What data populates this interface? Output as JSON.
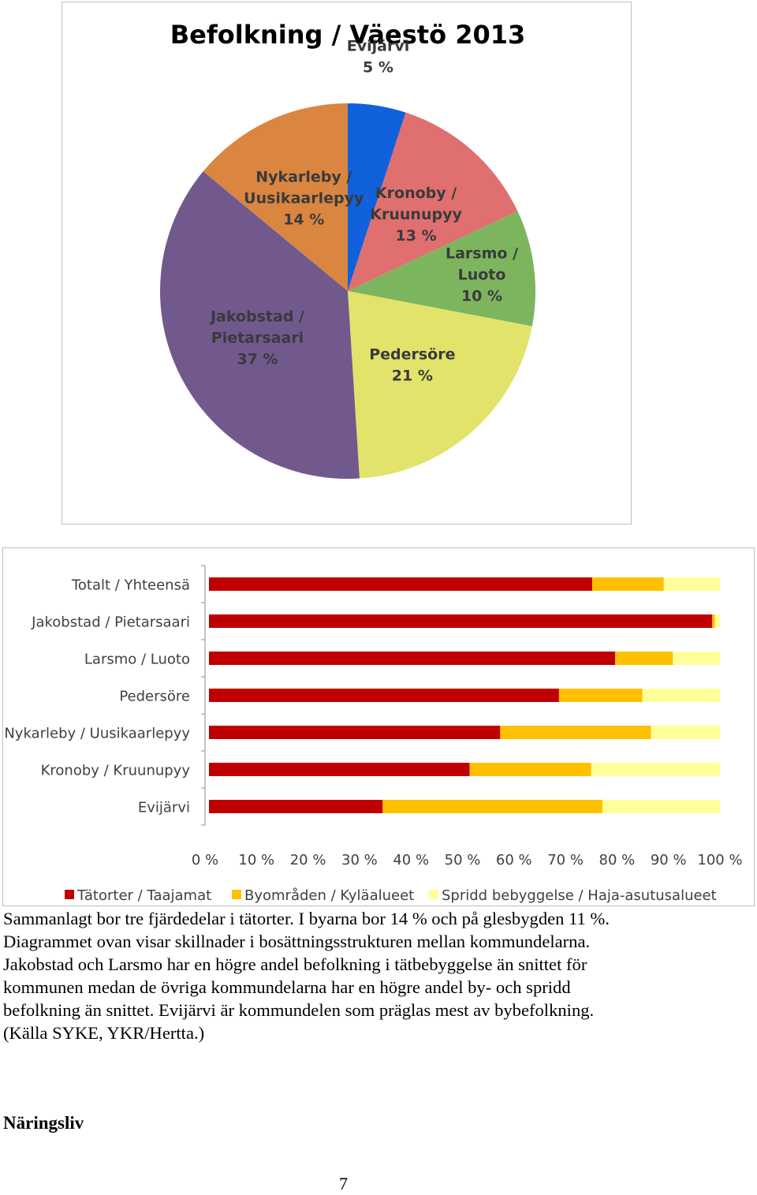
{
  "chart_data": [
    {
      "type": "pie",
      "title": "Befolkning / Väestö 2013",
      "slices": [
        {
          "label": [
            "Evijärvi"
          ],
          "value": 5,
          "value_label": "5 %",
          "color": "#1160DC"
        },
        {
          "label": [
            "Kronoby /",
            "Kruunupyy"
          ],
          "value": 13,
          "value_label": "13 %",
          "color": "#E06F6F"
        },
        {
          "label": [
            "Larsmo /",
            "Luoto"
          ],
          "value": 10,
          "value_label": "10 %",
          "color": "#7DB55E"
        },
        {
          "label": [
            "Pedersöre"
          ],
          "value": 21,
          "value_label": "21 %",
          "color": "#E2E36A"
        },
        {
          "label": [
            "Jakobstad /",
            "Pietarsaari"
          ],
          "value": 37,
          "value_label": "37 %",
          "color": "#71598E"
        },
        {
          "label": [
            "Nykarleby /",
            "Uusikaarlepyy"
          ],
          "value": 14,
          "value_label": "14 %",
          "color": "#DA8640"
        }
      ],
      "label_color": "#3a3a3a",
      "start_angle": "12 o'clock, clockwise"
    },
    {
      "type": "bar",
      "stacked": "percent",
      "orientation": "horizontal",
      "categories": [
        "Totalt / Yhteensä",
        "Jakobstad / Pietarsaari",
        "Larsmo / Luoto",
        "Pedersöre",
        "Nykarleby / Uusikaarlepyy",
        "Kronoby / Kruunupyy",
        "Evijärvi"
      ],
      "series": [
        {
          "name": "Tätorter / Taajamat",
          "color": "#C00000",
          "values": [
            75,
            98.5,
            79.5,
            68.5,
            57,
            51,
            34
          ]
        },
        {
          "name": "Byområden / Kyläalueet",
          "color": "#FFC000",
          "values": [
            14,
            0.5,
            11.3,
            16.3,
            29.5,
            23.8,
            43
          ]
        },
        {
          "name": "Spridd bebyggelse / Haja-asutusalueet",
          "color": "#FFFF99",
          "values": [
            11,
            1,
            9.2,
            15.2,
            13.5,
            25.2,
            23
          ]
        }
      ],
      "xticks": [
        "0 %",
        "10 %",
        "20 %",
        "30 %",
        "40 %",
        "50 %",
        "60 %",
        "70 %",
        "80 %",
        "90 %",
        "100 %"
      ],
      "xlim": [
        0,
        100
      ],
      "legend_position": "bottom",
      "grid": false
    }
  ],
  "caption": [
    "Sammanlagt bor tre fjärdedelar i tätorter. I byarna bor 14 % och på glesbygden 11 %.",
    "Diagrammet ovan visar skillnader i bosättningsstrukturen mellan kommundelarna.",
    "Jakobstad och Larsmo har en högre andel befolkning i tätbebyggelse än snittet för",
    "kommunen medan de övriga kommundelarna har en högre andel by- och spridd",
    "befolkning än snittet. Evijärvi är kommundelen som präglas mest av bybefolkning.",
    "(Källa SYKE, YKR/Hertta.)"
  ],
  "section_heading": "Näringsliv",
  "page_number": "7"
}
